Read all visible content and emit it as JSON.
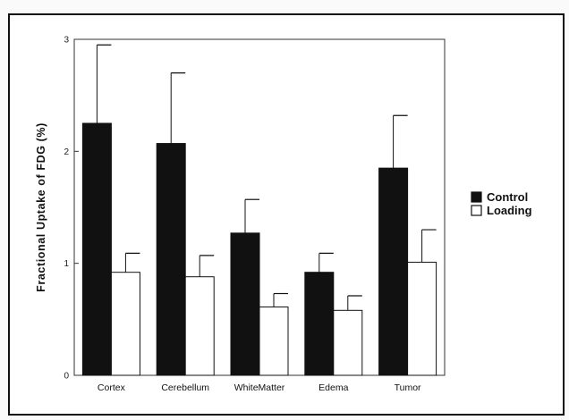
{
  "chart_data": {
    "type": "bar",
    "title": "",
    "xlabel": "",
    "ylabel": "Fractional Uptake of FDG (%)",
    "ylim": [
      0,
      3
    ],
    "yticks": [
      0,
      1,
      2,
      3
    ],
    "grid": false,
    "legend_placement": "right",
    "error_bars": true,
    "categories": [
      "Cortex",
      "Cerebellum",
      "WhiteMatter",
      "Edema",
      "Tumor"
    ],
    "series": [
      {
        "name": "Control",
        "color": "#111111",
        "values": [
          2.25,
          2.07,
          1.27,
          0.92,
          1.85
        ],
        "errors": [
          0.7,
          0.63,
          0.3,
          0.17,
          0.47
        ]
      },
      {
        "name": "Loading",
        "color": "#ffffff",
        "values": [
          0.92,
          0.88,
          0.61,
          0.58,
          1.01
        ],
        "errors": [
          0.17,
          0.19,
          0.12,
          0.13,
          0.29
        ]
      }
    ]
  }
}
